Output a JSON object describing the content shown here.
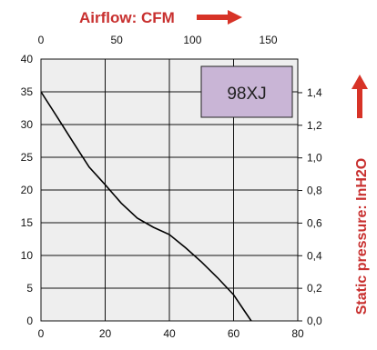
{
  "chart_data": {
    "type": "line",
    "title": "",
    "model_label": "98XJ",
    "x": [
      0,
      5,
      10,
      15,
      20,
      25,
      30,
      35,
      40,
      45,
      50,
      55,
      60,
      63,
      65.5
    ],
    "series": [
      {
        "values": [
          35,
          31.2,
          27.3,
          23.5,
          20.8,
          18.0,
          15.7,
          14.3,
          13.2,
          11.2,
          9.0,
          6.6,
          4.0,
          1.8,
          0
        ]
      }
    ],
    "xlim": [
      0,
      80
    ],
    "ylim": [
      0,
      40
    ],
    "x_ticks": [
      0,
      20,
      40,
      60,
      80
    ],
    "y_ticks": [
      0,
      5,
      10,
      15,
      20,
      25,
      30,
      35,
      40
    ],
    "top_axis": {
      "label": "Airflow: CFM",
      "ticks": [
        0,
        50,
        100,
        150
      ],
      "range": [
        0,
        169.5
      ]
    },
    "right_axis": {
      "label": "Static pressure: InH2O",
      "ticks": [
        "0,0",
        "0,2",
        "0,4",
        "0,6",
        "0,8",
        "1,0",
        "1,2",
        "1,4"
      ],
      "range": [
        0,
        1.606
      ]
    },
    "grid": true,
    "colors": {
      "plot_bg": "#eeeeee",
      "grid": "#111111",
      "curve": "#000000",
      "label_box": "#c9b5d6",
      "accent": "#c8302f"
    }
  }
}
